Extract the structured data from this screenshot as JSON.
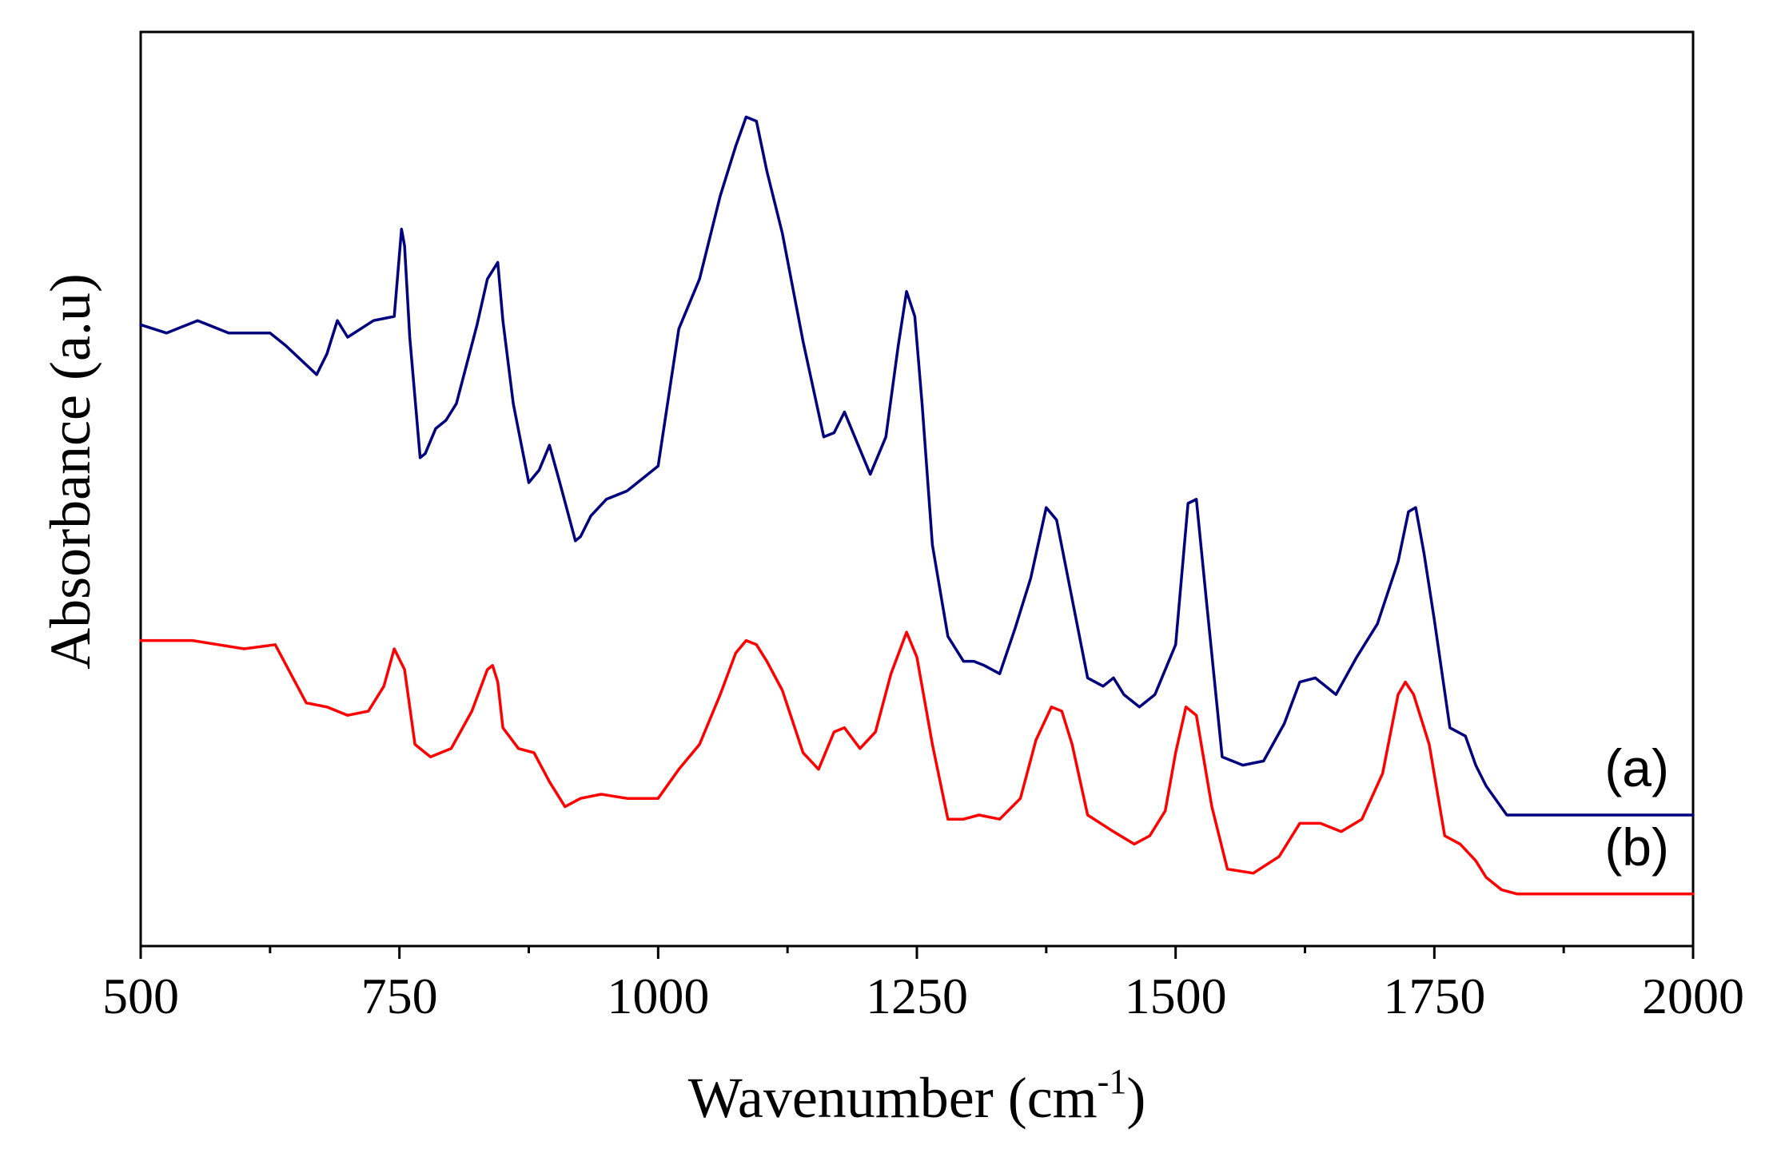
{
  "chart_data": {
    "type": "line",
    "title": "",
    "xlabel": "Wavenumber (cm",
    "xlabel_sup": "-1",
    "xlabel_close": ")",
    "ylabel": "Absorbance (a.u)",
    "xlim": [
      500,
      2000
    ],
    "ylim": [
      0,
      100
    ],
    "xticks": [
      500,
      750,
      1000,
      1250,
      1500,
      1750,
      2000
    ],
    "yticks_shown": false,
    "grid": false,
    "series": [
      {
        "name": "(a)",
        "color": "#00007f",
        "x": [
          500,
          525,
          555,
          585,
          600,
          625,
          640,
          670,
          680,
          690,
          700,
          725,
          745,
          752,
          755,
          760,
          770,
          775,
          785,
          795,
          805,
          825,
          835,
          845,
          850,
          860,
          875,
          885,
          895,
          905,
          920,
          925,
          935,
          950,
          970,
          1000,
          1020,
          1040,
          1060,
          1075,
          1085,
          1095,
          1105,
          1120,
          1140,
          1160,
          1170,
          1180,
          1190,
          1205,
          1220,
          1232,
          1240,
          1248,
          1255,
          1265,
          1280,
          1295,
          1305,
          1315,
          1330,
          1345,
          1360,
          1375,
          1385,
          1400,
          1415,
          1430,
          1440,
          1450,
          1465,
          1480,
          1500,
          1512,
          1520,
          1530,
          1545,
          1565,
          1585,
          1605,
          1620,
          1635,
          1655,
          1675,
          1695,
          1715,
          1725,
          1732,
          1740,
          1750,
          1765,
          1780,
          1790,
          1800,
          1820,
          1850,
          2000
        ],
        "y": [
          71.5,
          70.5,
          72,
          70.5,
          70.5,
          70.5,
          69,
          65.5,
          68,
          72,
          70,
          72,
          72.5,
          83,
          81,
          70,
          55.5,
          56,
          59,
          60,
          62,
          71.5,
          77,
          79,
          72,
          62,
          52.5,
          54,
          57,
          52.5,
          45.5,
          46,
          48.5,
          50.5,
          51.5,
          54.5,
          71,
          77,
          87,
          93,
          96.5,
          96,
          90,
          82.5,
          69.5,
          58,
          58.5,
          61,
          58,
          53.5,
          58,
          69,
          75.5,
          72.5,
          62,
          45,
          34,
          31,
          31,
          30.5,
          29.5,
          35,
          41,
          49.5,
          48,
          38.5,
          29,
          28,
          29,
          27,
          25.5,
          27,
          33,
          50,
          50.5,
          38,
          19.5,
          18.5,
          19,
          23.5,
          28.5,
          29,
          27,
          31.5,
          35.5,
          43,
          49,
          49.5,
          44,
          36,
          23,
          22,
          18.5,
          16,
          12.5,
          12.5,
          12.5
        ]
      },
      {
        "name": "(b)",
        "color": "#ff0000",
        "x": [
          500,
          550,
          600,
          630,
          660,
          680,
          700,
          720,
          735,
          745,
          755,
          765,
          780,
          800,
          820,
          835,
          840,
          845,
          850,
          865,
          880,
          895,
          910,
          925,
          945,
          970,
          1000,
          1020,
          1040,
          1060,
          1075,
          1085,
          1095,
          1105,
          1120,
          1140,
          1155,
          1170,
          1180,
          1195,
          1210,
          1225,
          1240,
          1250,
          1265,
          1280,
          1295,
          1310,
          1330,
          1350,
          1365,
          1380,
          1390,
          1400,
          1415,
          1440,
          1460,
          1475,
          1490,
          1500,
          1510,
          1520,
          1535,
          1550,
          1575,
          1600,
          1620,
          1640,
          1660,
          1680,
          1700,
          1715,
          1722,
          1730,
          1745,
          1760,
          1775,
          1790,
          1800,
          1815,
          1830,
          1860,
          2000
        ],
        "y": [
          33.5,
          33.5,
          32.5,
          33,
          26,
          25.5,
          24.5,
          25,
          28,
          32.5,
          30,
          21,
          19.5,
          20.5,
          25,
          30,
          30.5,
          28.5,
          23,
          20.5,
          20,
          16.5,
          13.5,
          14.5,
          15,
          14.5,
          14.5,
          18,
          21,
          27,
          32,
          33.5,
          33,
          31,
          27.5,
          20,
          18,
          22.5,
          23,
          20.5,
          22.5,
          29.5,
          34.5,
          31.5,
          21,
          12,
          12,
          12.5,
          12,
          14.5,
          21.5,
          25.5,
          25,
          21,
          12.5,
          10.5,
          9,
          10,
          13,
          20,
          25.5,
          24.5,
          13.5,
          6,
          5.5,
          7.5,
          11.5,
          11.5,
          10.5,
          12,
          17.5,
          27,
          28.5,
          27,
          21,
          10,
          9,
          7,
          5,
          3.5,
          3,
          3,
          3
        ]
      }
    ]
  }
}
